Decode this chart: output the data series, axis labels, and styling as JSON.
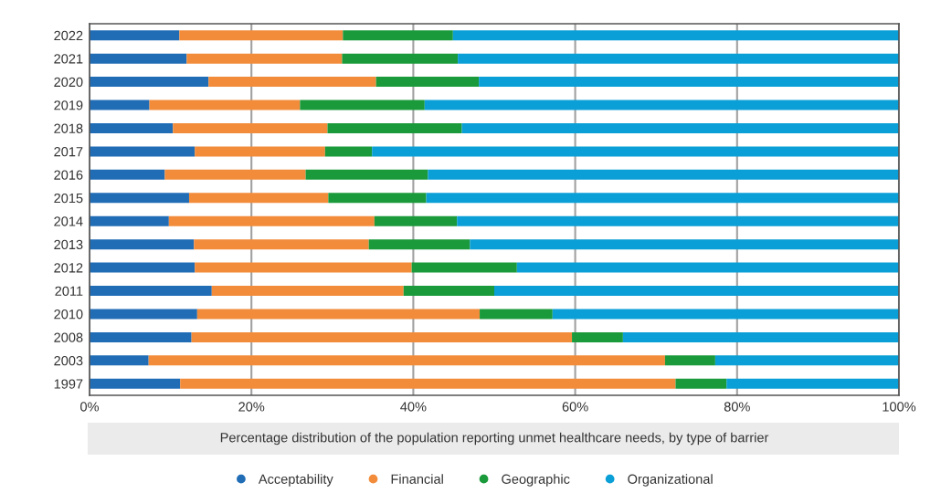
{
  "chart_data": {
    "type": "bar",
    "orientation": "horizontal",
    "stacked": true,
    "xlabel": "Percentage distribution of the population reporting unmet healthcare needs, by type of barrier",
    "categories": [
      "2022",
      "2021",
      "2020",
      "2019",
      "2018",
      "2017",
      "2016",
      "2015",
      "2014",
      "2013",
      "2012",
      "2011",
      "2010",
      "2008",
      "2003",
      "1997"
    ],
    "series": [
      {
        "name": "Acceptability",
        "color": "#206db6",
        "values": [
          11.1,
          12.0,
          14.7,
          7.4,
          10.3,
          13.0,
          9.3,
          12.3,
          9.8,
          12.9,
          13.0,
          15.1,
          13.3,
          12.6,
          7.3,
          11.2
        ]
      },
      {
        "name": "Financial",
        "color": "#f28c3b",
        "values": [
          20.2,
          19.2,
          20.7,
          18.6,
          19.1,
          16.1,
          17.4,
          17.2,
          25.4,
          21.6,
          26.8,
          23.7,
          34.9,
          47.0,
          63.8,
          61.2
        ]
      },
      {
        "name": "Geographic",
        "color": "#1a9a3a",
        "values": [
          13.6,
          14.3,
          12.7,
          15.4,
          16.6,
          5.8,
          15.1,
          12.1,
          10.2,
          12.5,
          13.0,
          11.2,
          9.0,
          6.3,
          6.2,
          6.3
        ]
      },
      {
        "name": "Organizational",
        "color": "#0a9fd6",
        "values": [
          55.1,
          54.5,
          51.9,
          58.6,
          54.0,
          65.1,
          58.2,
          58.4,
          54.6,
          53.0,
          47.2,
          50.0,
          42.8,
          34.1,
          22.7,
          21.3
        ]
      }
    ],
    "xlim": [
      0,
      100
    ],
    "xticks": [
      {
        "value": 0,
        "label": "0%"
      },
      {
        "value": 20,
        "label": "20%"
      },
      {
        "value": 40,
        "label": "40%"
      },
      {
        "value": 60,
        "label": "60%"
      },
      {
        "value": 80,
        "label": "80%"
      },
      {
        "value": 100,
        "label": "100%"
      }
    ],
    "grid": "x",
    "legend": "bottom"
  }
}
